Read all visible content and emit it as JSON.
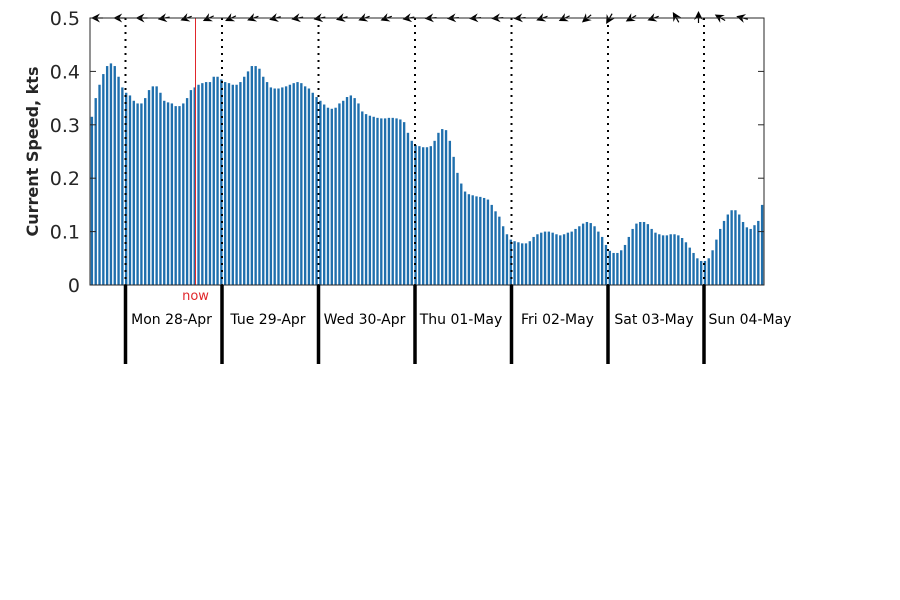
{
  "chart_data": {
    "type": "bar",
    "ylabel": "Current Speed, kts",
    "ylim": [
      0,
      0.5
    ],
    "yticks": [
      "0",
      "0.1",
      "0.2",
      "0.3",
      "0.4",
      "0.5"
    ],
    "grid": false,
    "now_label": "now",
    "bar_color": "#1f6fad",
    "now_color": "#e0262b",
    "days": [
      "Mon 28-Apr",
      "Tue 29-Apr",
      "Wed 30-Apr",
      "Thu 01-May",
      "Fri 02-May",
      "Sat 03-May",
      "Sun 04-May"
    ],
    "series": [
      {
        "values": [
          0.315,
          0.35,
          0.375,
          0.395,
          0.41,
          0.415,
          0.41,
          0.39,
          0.37,
          0.36,
          0.355,
          0.345,
          0.34,
          0.34,
          0.35,
          0.365,
          0.372,
          0.372,
          0.36,
          0.345,
          0.342,
          0.34,
          0.335,
          0.335,
          0.34,
          0.35,
          0.365,
          0.37,
          0.375,
          0.378,
          0.38,
          0.38,
          0.39,
          0.39,
          0.385,
          0.38,
          0.378,
          0.375,
          0.375,
          0.38,
          0.39,
          0.4,
          0.41,
          0.41,
          0.405,
          0.39,
          0.38,
          0.37,
          0.368,
          0.368,
          0.37,
          0.372,
          0.375,
          0.378,
          0.38,
          0.378,
          0.372,
          0.368,
          0.36,
          0.352,
          0.345,
          0.338,
          0.332,
          0.33,
          0.332,
          0.34,
          0.345,
          0.352,
          0.355,
          0.35,
          0.34,
          0.325,
          0.32,
          0.317,
          0.315,
          0.313,
          0.312,
          0.312,
          0.313,
          0.313,
          0.312,
          0.31,
          0.305,
          0.285,
          0.27,
          0.262,
          0.26,
          0.258,
          0.258,
          0.26,
          0.27,
          0.285,
          0.292,
          0.29,
          0.27,
          0.24,
          0.21,
          0.19,
          0.175,
          0.17,
          0.168,
          0.166,
          0.165,
          0.163,
          0.16,
          0.15,
          0.138,
          0.128,
          0.11,
          0.095,
          0.085,
          0.082,
          0.08,
          0.078,
          0.078,
          0.082,
          0.09,
          0.095,
          0.098,
          0.1,
          0.1,
          0.098,
          0.095,
          0.093,
          0.095,
          0.098,
          0.1,
          0.105,
          0.11,
          0.115,
          0.118,
          0.116,
          0.11,
          0.1,
          0.09,
          0.075,
          0.064,
          0.06,
          0.06,
          0.065,
          0.075,
          0.09,
          0.105,
          0.115,
          0.118,
          0.118,
          0.114,
          0.105,
          0.098,
          0.095,
          0.093,
          0.093,
          0.095,
          0.095,
          0.093,
          0.088,
          0.08,
          0.07,
          0.06,
          0.05,
          0.045,
          0.045,
          0.05,
          0.065,
          0.085,
          0.105,
          0.12,
          0.132,
          0.14,
          0.14,
          0.132,
          0.118,
          0.108,
          0.105,
          0.112,
          0.12,
          0.15
        ]
      }
    ],
    "direction_arrows_deg": [
      -90,
      -90,
      -90,
      -100,
      -110,
      -115,
      -115,
      -110,
      -105,
      -100,
      -100,
      -105,
      -110,
      -110,
      -100,
      -95,
      -95,
      -95,
      -95,
      -95,
      -110,
      -115,
      -130,
      -150,
      -120,
      -110,
      -30,
      0,
      -60,
      -75
    ]
  }
}
